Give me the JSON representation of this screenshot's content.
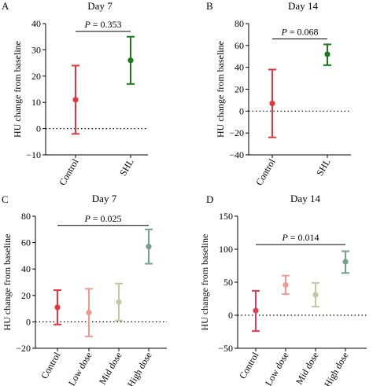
{
  "colors": {
    "axis": "#000000",
    "control_red": "#e8343c",
    "shl_green": "#1a7a1a",
    "low_dose": "#ee9a92",
    "mid_dose": "#c7c6a2",
    "high_dose": "#74a18c",
    "control_crimson": "#e23b55"
  },
  "chart_data": [
    {
      "panel": "A",
      "type": "scatter",
      "title": "Day 7",
      "ylabel": "HU change from baseline",
      "xlabel": "",
      "ylim": [
        -10,
        40
      ],
      "yticks": [
        -10,
        0,
        10,
        20,
        30,
        40
      ],
      "categories": [
        "Control",
        "SHL"
      ],
      "values": [
        11,
        26
      ],
      "lower": [
        -2,
        17
      ],
      "upper": [
        24,
        35
      ],
      "colors": [
        "#e8343c",
        "#1a7a1a"
      ],
      "reference_line": 0,
      "annotation": {
        "text": "P = 0.353",
        "from": 0,
        "to": 1,
        "y": 37
      }
    },
    {
      "panel": "B",
      "type": "scatter",
      "title": "Day 14",
      "ylabel": "HU change from baseline",
      "xlabel": "",
      "ylim": [
        -40,
        80
      ],
      "yticks": [
        -40,
        -20,
        0,
        20,
        40,
        60,
        80
      ],
      "categories": [
        "Control",
        "SHL"
      ],
      "values": [
        7,
        52
      ],
      "lower": [
        -24,
        42
      ],
      "upper": [
        38,
        61
      ],
      "colors": [
        "#e8343c",
        "#1a7a1a"
      ],
      "reference_line": 0,
      "annotation": {
        "text": "P = 0.068",
        "from": 0,
        "to": 1,
        "y": 66
      }
    },
    {
      "panel": "C",
      "type": "scatter",
      "title": "Day 7",
      "ylabel": "HU change from baseline",
      "xlabel": "",
      "ylim": [
        -20,
        80
      ],
      "yticks": [
        -20,
        0,
        20,
        40,
        60,
        80
      ],
      "categories": [
        "Control",
        "Low dose",
        "Mid dose",
        "High dose"
      ],
      "values": [
        11,
        7,
        15,
        57
      ],
      "lower": [
        -2,
        -11,
        1,
        44
      ],
      "upper": [
        24,
        25,
        29,
        70
      ],
      "colors": [
        "#e8343c",
        "#ee9a92",
        "#c7c6a2",
        "#74a18c"
      ],
      "reference_line": 0,
      "annotation": {
        "text": "P = 0.025",
        "from": 0,
        "to": 3,
        "y": 73
      }
    },
    {
      "panel": "D",
      "type": "scatter",
      "title": "Day 14",
      "ylabel": "HU change from baseline",
      "xlabel": "",
      "ylim": [
        -50,
        150
      ],
      "yticks": [
        -50,
        0,
        50,
        100,
        150
      ],
      "categories": [
        "Control",
        "Low dose",
        "Mid dose",
        "High dose"
      ],
      "values": [
        7,
        46,
        31,
        81
      ],
      "lower": [
        -24,
        32,
        13,
        64
      ],
      "upper": [
        37,
        60,
        49,
        97
      ],
      "colors": [
        "#e23b55",
        "#ee9a92",
        "#c7c6a2",
        "#74a18c"
      ],
      "reference_line": 0,
      "annotation": {
        "text": "P = 0.014",
        "from": 0,
        "to": 3,
        "y": 107
      }
    }
  ]
}
